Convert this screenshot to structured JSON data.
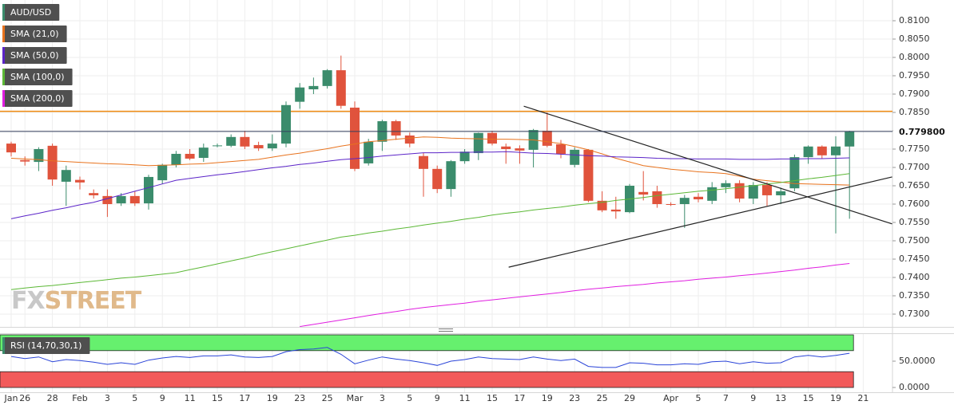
{
  "chart_data": [
    {
      "type": "candlestick",
      "categories": [
        "Jan",
        "26",
        null,
        "28",
        null,
        "Feb",
        null,
        "3",
        null,
        "5",
        null,
        "9",
        null,
        "11",
        null,
        "15",
        null,
        "17",
        null,
        "19",
        null,
        "23",
        null,
        "25",
        null,
        "Mar",
        null,
        "3",
        null,
        "5",
        null,
        "9",
        null,
        "11",
        null,
        "15",
        null,
        "17",
        null,
        "19",
        null,
        "23",
        null,
        "25",
        null,
        "29",
        null,
        null,
        "Apr",
        null,
        "5",
        null,
        "7",
        null,
        "9",
        null,
        "13",
        null,
        "15",
        null,
        "19",
        null,
        "21"
      ],
      "series": [
        {
          "name": "AUD/USD",
          "type": "candlestick",
          "color": "#3b8c6c",
          "down_color": "#e0533c",
          "open": [
            0.7765,
            0.772,
            0.7715,
            0.7759,
            0.7661,
            0.7666,
            0.763,
            0.7622,
            0.7602,
            0.7622,
            0.7602,
            0.7665,
            0.7707,
            0.7737,
            0.7726,
            0.7758,
            0.7759,
            0.7783,
            0.7761,
            0.7752,
            0.7765,
            0.7879,
            0.7913,
            0.7922,
            0.7965,
            0.7863,
            0.7711,
            0.777,
            0.7826,
            0.7787,
            0.7731,
            0.7696,
            0.7641,
            0.7717,
            0.7739,
            0.7794,
            0.7757,
            0.7752,
            0.7748,
            0.78,
            0.7763,
            0.7707,
            0.7748,
            0.7609,
            0.7585,
            0.7578,
            0.7633,
            0.7635,
            0.76,
            0.76,
            0.762,
            0.7609,
            0.7646,
            0.7657,
            0.7615,
            0.7652,
            0.7624,
            0.7643,
            0.7728,
            0.7757,
            0.7733,
            0.7757,
            null
          ],
          "high": [
            0.777,
            0.773,
            0.7755,
            0.7765,
            0.7705,
            0.7675,
            0.764,
            0.764,
            0.763,
            0.7635,
            0.768,
            0.771,
            0.7745,
            0.775,
            0.7765,
            0.7765,
            0.779,
            0.78,
            0.777,
            0.779,
            0.788,
            0.793,
            0.7945,
            0.7968,
            0.8005,
            0.788,
            0.7778,
            0.783,
            0.783,
            0.7795,
            0.774,
            0.7705,
            0.772,
            0.775,
            0.7795,
            0.78,
            0.7765,
            0.776,
            0.7805,
            0.785,
            0.7775,
            0.7755,
            0.775,
            0.7635,
            0.762,
            0.7655,
            0.769,
            0.765,
            0.7605,
            0.7625,
            0.763,
            0.766,
            0.7665,
            0.7665,
            0.766,
            0.766,
            0.7645,
            0.7735,
            0.776,
            0.776,
            0.7785,
            0.78,
            null
          ],
          "low": [
            0.773,
            0.7705,
            0.769,
            0.765,
            0.7595,
            0.764,
            0.7615,
            0.7565,
            0.7595,
            0.7595,
            0.7585,
            0.7655,
            0.77,
            0.772,
            0.7715,
            0.7755,
            0.7755,
            0.775,
            0.7745,
            0.7745,
            0.7755,
            0.786,
            0.79,
            0.7915,
            0.786,
            0.769,
            0.7705,
            0.7745,
            0.7775,
            0.7755,
            0.762,
            0.763,
            0.762,
            0.771,
            0.772,
            0.776,
            0.771,
            0.771,
            0.77,
            0.7755,
            0.7725,
            0.77,
            0.7605,
            0.7578,
            0.756,
            0.7575,
            0.761,
            0.759,
            0.7595,
            0.7535,
            0.7605,
            0.76,
            0.763,
            0.7605,
            0.76,
            0.7595,
            0.76,
            0.7635,
            0.771,
            0.7725,
            0.752,
            0.756,
            null
          ],
          "close": [
            0.7741,
            0.7716,
            0.775,
            0.7667,
            0.7693,
            0.7659,
            0.7624,
            0.76,
            0.7622,
            0.7602,
            0.7674,
            0.7707,
            0.7737,
            0.7724,
            0.7754,
            0.776,
            0.7783,
            0.7757,
            0.7752,
            0.7765,
            0.787,
            0.7918,
            0.7922,
            0.7965,
            0.7868,
            0.7696,
            0.777,
            0.7826,
            0.7787,
            0.7765,
            0.7696,
            0.7641,
            0.7717,
            0.7743,
            0.7794,
            0.7765,
            0.775,
            0.7746,
            0.7802,
            0.7759,
            0.7737,
            0.7748,
            0.7609,
            0.7583,
            0.758,
            0.765,
            0.7626,
            0.76,
            0.7598,
            0.7617,
            0.7613,
            0.7646,
            0.7657,
            0.7615,
            0.7652,
            0.7624,
            0.7635,
            0.7728,
            0.7757,
            0.7733,
            0.7757,
            0.7798,
            null
          ]
        },
        {
          "name": "SMA (21,0)",
          "type": "line",
          "color": "#e8731e",
          "values": [
            0.7725,
            0.7723,
            0.7721,
            0.7718,
            0.7716,
            0.7714,
            0.7712,
            0.771,
            0.7709,
            0.7707,
            0.7705,
            0.7706,
            0.7707,
            0.7709,
            0.771,
            0.7713,
            0.7716,
            0.7719,
            0.7722,
            0.7728,
            0.7734,
            0.7739,
            0.7745,
            0.7751,
            0.7758,
            0.7764,
            0.777,
            0.7773,
            0.7777,
            0.778,
            0.7783,
            0.7782,
            0.778,
            0.7779,
            0.7778,
            0.7777,
            0.7777,
            0.7776,
            0.7775,
            0.777,
            0.7765,
            0.7757,
            0.7748,
            0.7737,
            0.7725,
            0.7715,
            0.7705,
            0.77,
            0.7695,
            0.7692,
            0.7688,
            0.7686,
            0.7683,
            0.7676,
            0.7668,
            0.7664,
            0.766,
            0.7656,
            0.7655,
            0.7654,
            0.7653,
            0.7652,
            null
          ]
        },
        {
          "name": "SMA (50,0)",
          "type": "line",
          "color": "#5b24c8",
          "values": [
            0.756,
            0.7568,
            0.7575,
            0.7583,
            0.759,
            0.7598,
            0.7605,
            0.7615,
            0.7625,
            0.7635,
            0.7645,
            0.7655,
            0.7665,
            0.767,
            0.7675,
            0.768,
            0.7684,
            0.7689,
            0.7694,
            0.7699,
            0.7703,
            0.7708,
            0.7712,
            0.7717,
            0.7721,
            0.7724,
            0.7727,
            0.7731,
            0.7734,
            0.7737,
            0.774,
            0.774,
            0.7741,
            0.7741,
            0.7742,
            0.7742,
            0.7743,
            0.7741,
            0.7739,
            0.7738,
            0.7736,
            0.7734,
            0.7732,
            0.7731,
            0.7729,
            0.7728,
            0.7727,
            0.7725,
            0.7724,
            0.7724,
            0.7723,
            0.7723,
            0.7723,
            0.7722,
            0.7722,
            0.7722,
            0.7723,
            0.7723,
            0.7724,
            0.7724,
            0.7725,
            0.7726,
            null
          ]
        },
        {
          "name": "SMA (100,0)",
          "type": "line",
          "color": "#5cb836",
          "values": [
            0.7367,
            0.7371,
            0.7375,
            0.7378,
            0.7382,
            0.7386,
            0.739,
            0.7394,
            0.7398,
            0.7401,
            0.7405,
            0.7409,
            0.7413,
            0.7421,
            0.7429,
            0.7437,
            0.7445,
            0.7453,
            0.7462,
            0.747,
            0.7478,
            0.7486,
            0.7494,
            0.7502,
            0.751,
            0.7515,
            0.7521,
            0.7526,
            0.7532,
            0.7537,
            0.7543,
            0.7548,
            0.7553,
            0.7559,
            0.7564,
            0.757,
            0.7575,
            0.7579,
            0.7584,
            0.7588,
            0.7592,
            0.7597,
            0.7601,
            0.7605,
            0.761,
            0.7614,
            0.7618,
            0.7623,
            0.7627,
            0.7631,
            0.7635,
            0.7638,
            0.7642,
            0.7646,
            0.765,
            0.7655,
            0.7659,
            0.7664,
            0.7669,
            0.7673,
            0.7678,
            0.7683,
            null
          ]
        },
        {
          "name": "SMA (200,0)",
          "type": "line",
          "color": "#e01ee0",
          "values": [
            null,
            null,
            null,
            null,
            null,
            null,
            null,
            null,
            null,
            null,
            null,
            null,
            null,
            null,
            null,
            null,
            null,
            null,
            null,
            null,
            null,
            0.7266,
            0.7272,
            0.7278,
            0.7284,
            0.729,
            0.7296,
            0.7302,
            0.7307,
            0.7313,
            0.7318,
            0.7322,
            0.7326,
            0.733,
            0.7335,
            0.7339,
            0.7343,
            0.7347,
            0.7351,
            0.7355,
            0.7359,
            0.7364,
            0.7368,
            0.7371,
            0.7375,
            0.7378,
            0.7381,
            0.7385,
            0.7388,
            0.7391,
            0.7395,
            0.7398,
            0.7401,
            0.7405,
            0.7408,
            0.7412,
            0.7416,
            0.742,
            0.7425,
            0.7429,
            0.7434,
            0.7438,
            null
          ]
        }
      ],
      "ylim": [
        0.72652,
        0.81565
      ],
      "yticks": [
        {
          "value": 0.73,
          "label": "0.7300"
        },
        {
          "value": 0.735,
          "label": "0.7350"
        },
        {
          "value": 0.74,
          "label": "0.7400"
        },
        {
          "value": 0.745,
          "label": "0.7450"
        },
        {
          "value": 0.75,
          "label": "0.7500"
        },
        {
          "value": 0.755,
          "label": "0.7550"
        },
        {
          "value": 0.76,
          "label": "0.7600"
        },
        {
          "value": 0.765,
          "label": "0.7650"
        },
        {
          "value": 0.77,
          "label": "0.7700"
        },
        {
          "value": 0.775,
          "label": "0.7750"
        },
        {
          "value": 0.78,
          "label": "0.7800"
        },
        {
          "value": 0.785,
          "label": "0.7850"
        },
        {
          "value": 0.79,
          "label": "0.7900"
        },
        {
          "value": 0.795,
          "label": "0.7950"
        },
        {
          "value": 0.8,
          "label": "0.8000"
        },
        {
          "value": 0.805,
          "label": "0.8050"
        },
        {
          "value": 0.81,
          "label": "0.8100"
        }
      ],
      "grid": true,
      "hlines": [
        {
          "value": 0.7853,
          "color": "#ef8a10"
        }
      ],
      "last_price": {
        "value": 0.7798,
        "label": "0.779800",
        "color": "#34405e"
      },
      "trendlines": [
        {
          "x": [
            37.3,
            64.1
          ],
          "y": [
            0.7867,
            0.7546
          ],
          "color": "#222222"
        },
        {
          "x": [
            36.2,
            64.1
          ],
          "y": [
            0.7428,
            0.7674
          ],
          "color": "#222222"
        }
      ],
      "watermark": [
        "FX",
        "STREET"
      ]
    },
    {
      "type": "line",
      "series": [
        {
          "name": "RSI (14,70,30,1)",
          "color": "#2a44d8",
          "values": [
            59,
            55,
            58,
            49,
            53,
            51,
            48,
            44,
            47,
            44,
            52,
            56,
            59,
            57,
            60,
            60,
            62,
            58,
            57,
            59,
            68,
            72,
            73,
            76,
            63,
            45,
            52,
            58,
            54,
            51,
            47,
            42,
            50,
            53,
            58,
            55,
            54,
            53,
            58,
            54,
            51,
            54,
            40,
            38,
            38,
            47,
            46,
            43,
            43,
            45,
            44,
            49,
            50,
            45,
            49,
            46,
            47,
            58,
            61,
            58,
            61,
            65,
            null
          ]
        }
      ],
      "ylim": [
        0,
        100
      ],
      "yticks": [
        {
          "value": 50,
          "label": "50.0000"
        },
        {
          "value": 0,
          "label": "0.0000"
        }
      ],
      "overbought": 70,
      "oversold": 30,
      "overbought_color": "#66f06e",
      "oversold_color": "#f25a5a"
    }
  ]
}
